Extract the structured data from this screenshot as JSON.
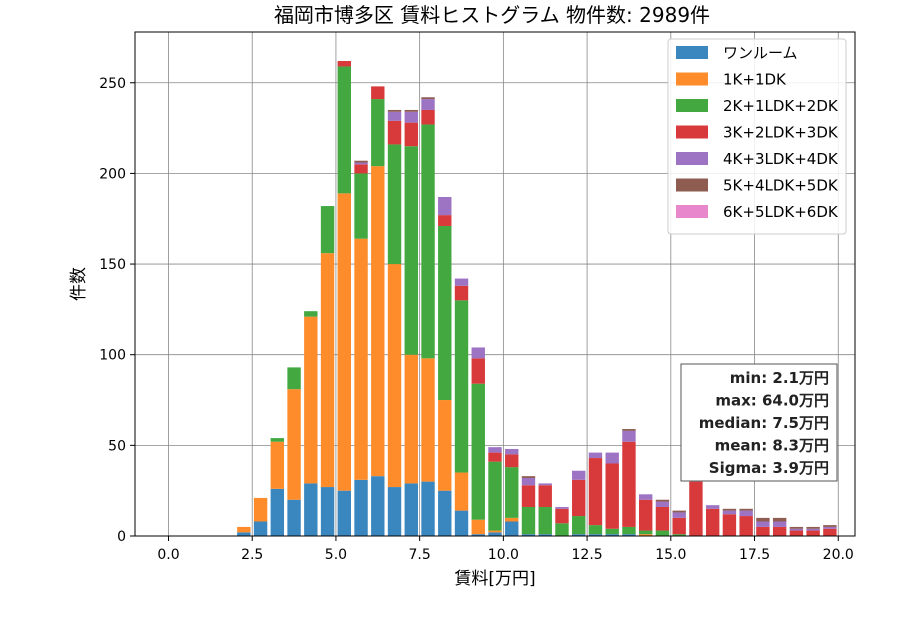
{
  "chart_data": {
    "type": "bar",
    "stacked": true,
    "title": "福岡市博多区 賃料ヒストグラム 物件数: 2989件",
    "xlabel": "賃料[万円]",
    "ylabel": "件数",
    "xlim": [
      -1.0,
      20.5
    ],
    "ylim": [
      0,
      278
    ],
    "grid": true,
    "legend_position": "top-right",
    "xticks": [
      "0.0",
      "2.5",
      "5.0",
      "7.5",
      "10.0",
      "12.5",
      "15.0",
      "17.5",
      "20.0"
    ],
    "yticks": [
      "0",
      "50",
      "100",
      "150",
      "200",
      "250"
    ],
    "bin_width": 0.5,
    "x": [
      2.25,
      2.75,
      3.25,
      3.75,
      4.25,
      4.75,
      5.25,
      5.75,
      6.25,
      6.75,
      7.25,
      7.75,
      8.25,
      8.75,
      9.25,
      9.75,
      10.25,
      10.75,
      11.25,
      11.75,
      12.25,
      12.75,
      13.25,
      13.75,
      14.25,
      14.75,
      15.25,
      15.75,
      16.25,
      16.75,
      17.25,
      17.75,
      18.25,
      18.75,
      19.25,
      19.75
    ],
    "series": [
      {
        "name": "ワンルーム",
        "color": "#3a86bf",
        "values": [
          2,
          8,
          26,
          20,
          29,
          27,
          25,
          31,
          33,
          27,
          29,
          30,
          25,
          14,
          1,
          2,
          8,
          1,
          1,
          0,
          1,
          1,
          1,
          1,
          0,
          0,
          0,
          0,
          0,
          0,
          0,
          0,
          0,
          0,
          0,
          0
        ]
      },
      {
        "name": "1K+1DK",
        "color": "#ff8c2b",
        "values": [
          3,
          13,
          26,
          61,
          92,
          129,
          164,
          133,
          171,
          123,
          71,
          68,
          50,
          21,
          8,
          1,
          2,
          0,
          0,
          0,
          0,
          0,
          0,
          0,
          1,
          0,
          0,
          0,
          0,
          0,
          0,
          0,
          0,
          0,
          0,
          0
        ]
      },
      {
        "name": "2K+1LDK+2DK",
        "color": "#42a83f",
        "values": [
          0,
          0,
          2,
          12,
          3,
          26,
          70,
          36,
          37,
          66,
          115,
          129,
          96,
          95,
          75,
          38,
          28,
          15,
          15,
          7,
          10,
          5,
          3,
          4,
          2,
          3,
          1,
          0,
          0,
          0,
          0,
          0,
          0,
          0,
          0,
          0
        ]
      },
      {
        "name": "3K+2LDK+3DK",
        "color": "#d83a3b",
        "values": [
          0,
          0,
          0,
          0,
          0,
          0,
          3,
          5,
          7,
          13,
          13,
          8,
          6,
          8,
          14,
          5,
          7,
          12,
          12,
          8,
          20,
          37,
          36,
          47,
          17,
          13,
          9,
          30,
          15,
          12,
          11,
          5,
          5,
          3,
          3,
          4
        ]
      },
      {
        "name": "4K+3LDK+4DK",
        "color": "#9d73c4",
        "values": [
          0,
          0,
          0,
          0,
          0,
          0,
          0,
          1,
          0,
          5,
          6,
          6,
          10,
          4,
          6,
          3,
          3,
          4,
          1,
          1,
          5,
          3,
          6,
          6,
          3,
          3,
          3,
          4,
          2,
          2,
          3,
          3,
          3,
          1,
          1,
          1
        ]
      },
      {
        "name": "5K+4LDK+5DK",
        "color": "#8e5c51",
        "values": [
          0,
          0,
          0,
          0,
          0,
          0,
          0,
          1,
          0,
          1,
          1,
          1,
          0,
          0,
          0,
          0,
          0,
          1,
          0,
          0,
          0,
          0,
          0,
          1,
          0,
          1,
          1,
          0,
          0,
          1,
          1,
          2,
          2,
          1,
          1,
          1
        ]
      },
      {
        "name": "6K+5LDK+6DK",
        "color": "#e887cc",
        "values": [
          0,
          0,
          0,
          0,
          0,
          0,
          0,
          0,
          0,
          0,
          0,
          0,
          0,
          0,
          0,
          0,
          0,
          0,
          0,
          0,
          0,
          0,
          0,
          0,
          0,
          0,
          0,
          0,
          0,
          0,
          0,
          0,
          0,
          0,
          0,
          0
        ]
      }
    ],
    "stats": [
      "min: 2.1万円",
      "max: 64.0万円",
      "median: 7.5万円",
      "mean: 8.3万円",
      "Sigma: 3.9万円"
    ]
  }
}
